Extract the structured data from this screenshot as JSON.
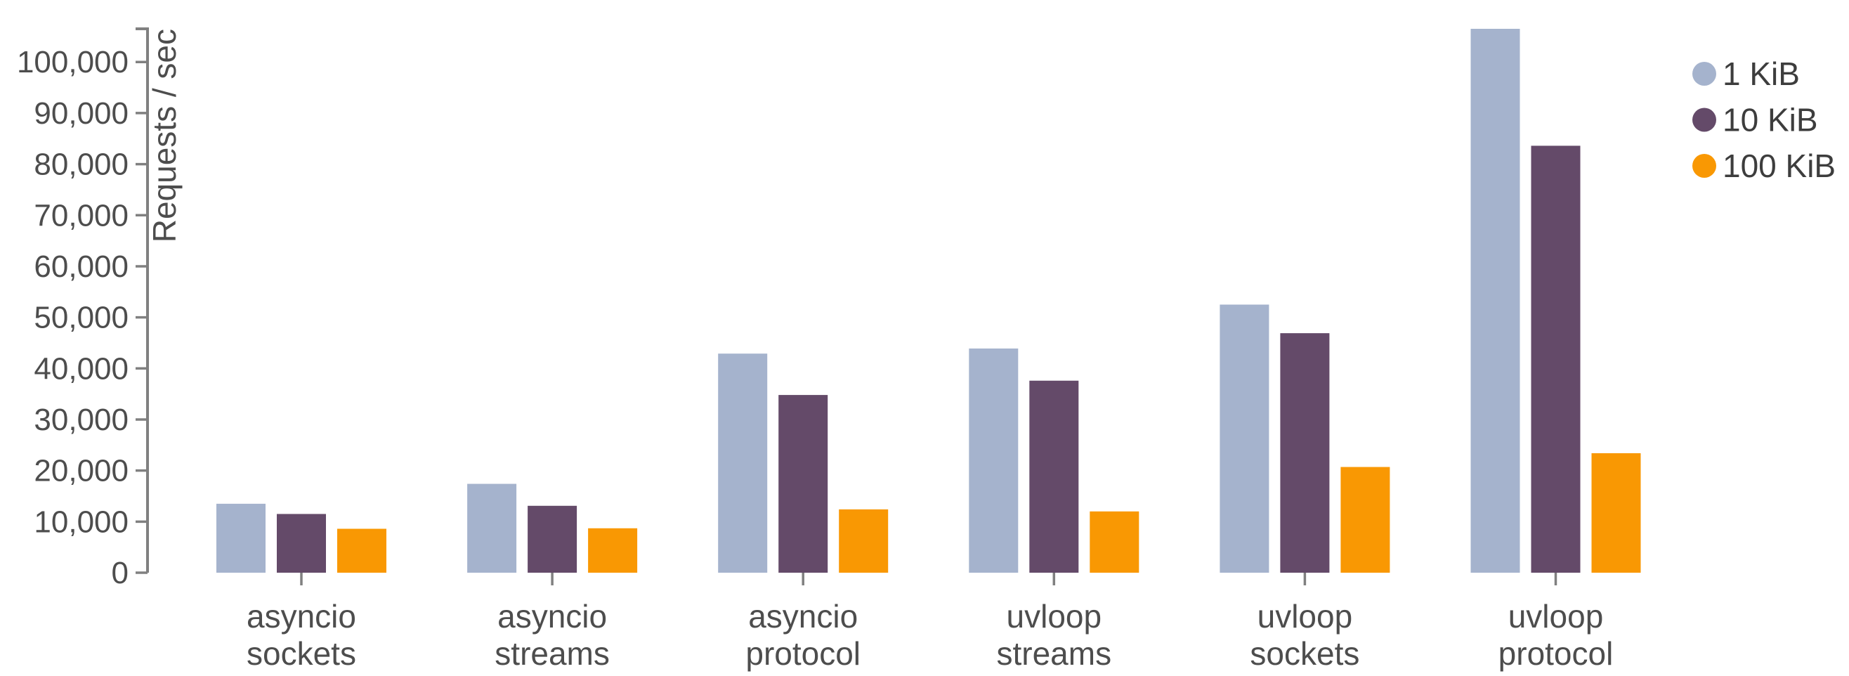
{
  "chart_data": {
    "type": "bar",
    "title": "",
    "xlabel": "",
    "ylabel": "Requests / sec",
    "ylim": [
      0,
      106500
    ],
    "grid": false,
    "legend_position": "top-right",
    "categories": [
      "asyncio sockets",
      "asyncio streams",
      "asyncio protocol",
      "uvloop streams",
      "uvloop sockets",
      "uvloop protocol"
    ],
    "category_label_lines": [
      [
        "asyncio",
        "sockets"
      ],
      [
        "asyncio",
        "streams"
      ],
      [
        "asyncio",
        "protocol"
      ],
      [
        "uvloop",
        "streams"
      ],
      [
        "uvloop",
        "sockets"
      ],
      [
        "uvloop",
        "protocol"
      ]
    ],
    "series": [
      {
        "name": "1 KiB",
        "color": "#a5b3cd",
        "values": [
          13500,
          17400,
          42900,
          43900,
          52500,
          106500
        ]
      },
      {
        "name": "10 KiB",
        "color": "#644a69",
        "values": [
          11500,
          13100,
          34800,
          37600,
          46900,
          83600
        ]
      },
      {
        "name": "100 KiB",
        "color": "#f99803",
        "values": [
          8600,
          8700,
          12400,
          12000,
          20700,
          23400
        ]
      }
    ],
    "y_ticks": [
      {
        "value": 0,
        "label": "0"
      },
      {
        "value": 10000,
        "label": "10,000"
      },
      {
        "value": 20000,
        "label": "20,000"
      },
      {
        "value": 30000,
        "label": "30,000"
      },
      {
        "value": 40000,
        "label": "40,000"
      },
      {
        "value": 50000,
        "label": "50,000"
      },
      {
        "value": 60000,
        "label": "60,000"
      },
      {
        "value": 70000,
        "label": "70,000"
      },
      {
        "value": 80000,
        "label": "80,000"
      },
      {
        "value": 90000,
        "label": "90,000"
      },
      {
        "value": 100000,
        "label": "100,000"
      }
    ]
  },
  "colors": {
    "background": "#ffffff",
    "axis": "#808080",
    "tick_label": "#4d4d4d",
    "category_label": "#4d4d4d",
    "legend_label": "#3d3d3d",
    "axis_title": "#4d4d4d"
  }
}
